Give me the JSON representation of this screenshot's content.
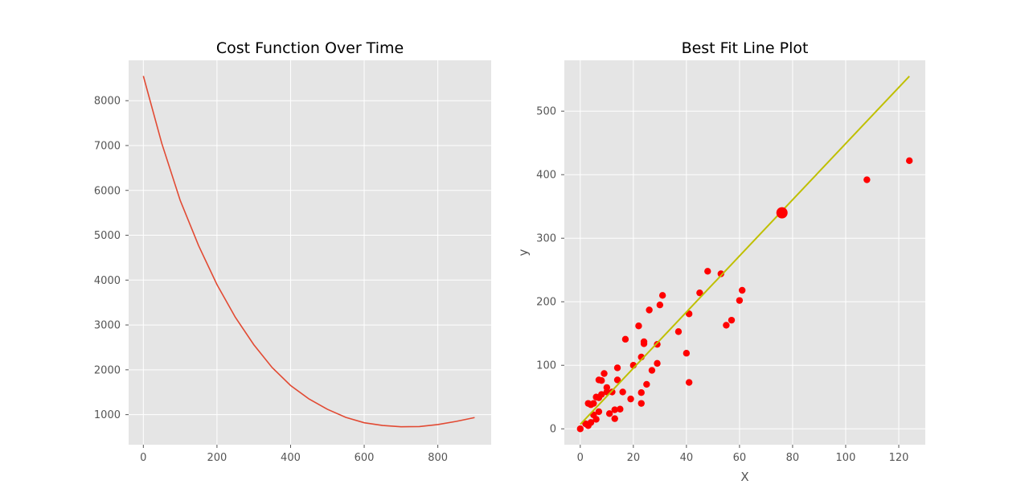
{
  "colors": {
    "panel_bg": "#e5e5e5",
    "cost_line": "#e24a33",
    "scatter_points": "#ff0000",
    "fit_line": "#bfbf00",
    "tick_text": "#555555"
  },
  "chart_data": [
    {
      "type": "line",
      "title": "Cost Function Over Time",
      "xlabel": "",
      "ylabel": "",
      "xlim": [
        -40,
        945
      ],
      "ylim": [
        330,
        8900
      ],
      "xticks": [
        0,
        200,
        400,
        600,
        800
      ],
      "yticks": [
        1000,
        2000,
        3000,
        4000,
        5000,
        6000,
        7000,
        8000
      ],
      "grid": true,
      "series": [
        {
          "x": [
            0,
            50,
            100,
            150,
            200,
            250,
            300,
            350,
            400,
            450,
            500,
            550,
            600,
            650,
            700,
            750,
            800,
            850,
            900
          ],
          "values": [
            8550,
            7050,
            5780,
            4770,
            3900,
            3170,
            2560,
            2050,
            1650,
            1350,
            1120,
            940,
            820,
            760,
            730,
            735,
            780,
            850,
            935
          ]
        }
      ]
    },
    {
      "type": "scatter",
      "title": "Best Fit Line Plot",
      "xlabel": "X",
      "ylabel": "y",
      "xlim": [
        -6,
        130
      ],
      "ylim": [
        -25,
        580
      ],
      "xticks": [
        0,
        20,
        40,
        60,
        80,
        100,
        120
      ],
      "yticks": [
        0,
        100,
        200,
        300,
        400,
        500
      ],
      "grid": true,
      "points": {
        "x": [
          0,
          3,
          3,
          4,
          4,
          5,
          6,
          7,
          7,
          6,
          8,
          8,
          9,
          10,
          11,
          12,
          13,
          13,
          14,
          14,
          15,
          16,
          17,
          19,
          20,
          22,
          23,
          23,
          23,
          24,
          24,
          25,
          26,
          27,
          29,
          29,
          30,
          31,
          37,
          40,
          41,
          41,
          45,
          48,
          53,
          55,
          57,
          60,
          61,
          108,
          124,
          2,
          5,
          7,
          10
        ],
        "y": [
          0,
          5,
          40,
          38,
          10,
          40,
          15,
          27,
          77,
          50,
          54,
          76,
          87,
          65,
          24,
          58,
          16,
          30,
          77,
          96,
          31,
          58,
          141,
          47,
          100,
          162,
          113,
          57,
          40,
          134,
          137,
          70,
          187,
          92,
          103,
          133,
          195,
          210,
          153,
          119,
          181,
          73,
          214,
          248,
          244,
          163,
          171,
          202,
          218,
          392,
          422,
          8,
          22,
          49,
          58
        ]
      },
      "highlight_point": {
        "x": 76,
        "y": 340
      },
      "fit_line": {
        "x": [
          0,
          124
        ],
        "y": [
          7,
          555
        ]
      }
    }
  ]
}
